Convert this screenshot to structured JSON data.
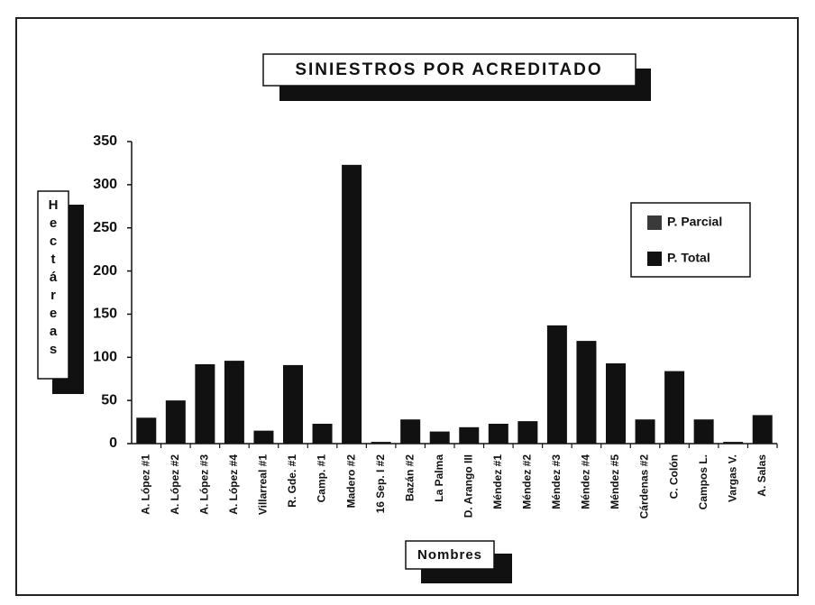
{
  "chart_data": {
    "type": "stacked_bar",
    "title": "SINIESTROS POR ACREDITADO",
    "y_label": "Hectáreas",
    "x_label": "Nombres",
    "categories": [
      "A. López #1",
      "A. López #2",
      "A. López #3",
      "A. López #4",
      "Villarreal #1",
      "R. Gde. #1",
      "Camp. #1",
      "Madero #2",
      "16 Sep. I #2",
      "Bazán #2",
      "La Palma",
      "D. Arango III",
      "Méndez #1",
      "Méndez #2",
      "Méndez #3",
      "Méndez #4",
      "Méndez #5",
      "Cárdenas #2",
      "C. Colón",
      "Campos L.",
      "Vargas V.",
      "A. Salas"
    ],
    "series": [
      {
        "name": "P. Parcial",
        "color": "#3a3a3a",
        "values": [
          0,
          0,
          0,
          0,
          0,
          0,
          0,
          0,
          0,
          0,
          0,
          0,
          0,
          0,
          0,
          0,
          0,
          0,
          0,
          0,
          0,
          0
        ]
      },
      {
        "name": "P. Total",
        "color": "#111111",
        "values": [
          30,
          50,
          92,
          96,
          15,
          91,
          23,
          323,
          2,
          28,
          14,
          19,
          23,
          26,
          137,
          119,
          93,
          28,
          84,
          28,
          2,
          33
        ]
      }
    ],
    "ylim": [
      0,
      350
    ],
    "yticks": [
      0,
      50,
      100,
      150,
      200,
      250,
      300,
      350
    ],
    "legend": "right"
  }
}
